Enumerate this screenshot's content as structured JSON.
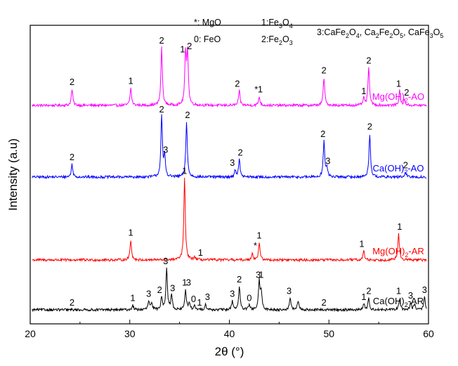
{
  "chart_data": {
    "type": "line",
    "xlabel": "2θ (°)",
    "ylabel": "Intensity (a.u)",
    "xlim": [
      20,
      60
    ],
    "xticks": [
      20,
      30,
      40,
      50,
      60
    ],
    "legend": {
      "position": "top",
      "entries": [
        {
          "symbol": "*",
          "name": "MgO",
          "text": "*: MgO"
        },
        {
          "symbol": "0",
          "name": "FeO",
          "text": "0: FeO"
        },
        {
          "symbol": "1",
          "name": "Fe3O4",
          "text": "1:Fe3O4"
        },
        {
          "symbol": "2",
          "name": "Fe2O3",
          "text": "2:Fe2O3"
        },
        {
          "symbol": "3",
          "name": "CaFe2O4, Ca2Fe2O5, CaFe3O5",
          "text": "3:CaFe2O4, Ca2Fe2O5, CaFe3O5"
        }
      ]
    },
    "series": [
      {
        "name": "Mg(OH)2-AO",
        "color": "#ff00ff",
        "baseline": 3.0,
        "peaks": [
          [
            24.2,
            0.28
          ],
          [
            30.1,
            0.3
          ],
          [
            33.2,
            1.0
          ],
          [
            35.6,
            0.85
          ],
          [
            35.8,
            0.9
          ],
          [
            41.0,
            0.25
          ],
          [
            43.0,
            0.15
          ],
          [
            49.5,
            0.48
          ],
          [
            53.5,
            0.12
          ],
          [
            54.0,
            0.65
          ],
          [
            57.1,
            0.25
          ],
          [
            57.6,
            0.1
          ]
        ],
        "annotations": [
          {
            "x": 24.2,
            "label": "2"
          },
          {
            "x": 30.1,
            "label": "1"
          },
          {
            "x": 33.2,
            "label": "2"
          },
          {
            "x": 35.3,
            "label": "1"
          },
          {
            "x": 36.0,
            "label": "2"
          },
          {
            "x": 40.8,
            "label": "2"
          },
          {
            "x": 42.7,
            "label": "*"
          },
          {
            "x": 43.1,
            "label": "1"
          },
          {
            "x": 49.5,
            "label": "2"
          },
          {
            "x": 53.5,
            "label": "1"
          },
          {
            "x": 54.0,
            "label": "2"
          },
          {
            "x": 57.0,
            "label": "1"
          },
          {
            "x": 57.8,
            "label": "2"
          }
        ]
      },
      {
        "name": "Ca(OH)2-AO",
        "color": "#0000ff",
        "baseline": 2.0,
        "peaks": [
          [
            24.2,
            0.22
          ],
          [
            33.2,
            1.05
          ],
          [
            33.5,
            0.35
          ],
          [
            35.7,
            0.95
          ],
          [
            40.6,
            0.12
          ],
          [
            41.0,
            0.3
          ],
          [
            49.5,
            0.62
          ],
          [
            49.8,
            0.15
          ],
          [
            54.1,
            0.75
          ],
          [
            57.7,
            0.08
          ]
        ],
        "annotations": [
          {
            "x": 24.2,
            "label": "2"
          },
          {
            "x": 33.2,
            "label": "2"
          },
          {
            "x": 33.6,
            "label": "3"
          },
          {
            "x": 35.8,
            "label": "2"
          },
          {
            "x": 40.3,
            "label": "3"
          },
          {
            "x": 41.1,
            "label": "2"
          },
          {
            "x": 49.4,
            "label": "2"
          },
          {
            "x": 49.9,
            "label": "3"
          },
          {
            "x": 54.1,
            "label": "2"
          },
          {
            "x": 57.7,
            "label": "2"
          }
        ]
      },
      {
        "name": "Mg(OH)2-AR",
        "color": "#ff0000",
        "baseline": 1.0,
        "peaks": [
          [
            30.1,
            0.35
          ],
          [
            35.5,
            1.42
          ],
          [
            36.5,
            0.05
          ],
          [
            42.3,
            0.12
          ],
          [
            43.0,
            0.3
          ],
          [
            53.5,
            0.15
          ],
          [
            57.0,
            0.45
          ]
        ],
        "annotations": [
          {
            "x": 30.1,
            "label": "1"
          },
          {
            "x": 35.5,
            "label": "1"
          },
          {
            "x": 37.1,
            "label": "1"
          },
          {
            "x": 42.6,
            "label": "*"
          },
          {
            "x": 43.0,
            "label": "1"
          },
          {
            "x": 53.3,
            "label": "1"
          },
          {
            "x": 57.1,
            "label": "1"
          }
        ]
      },
      {
        "name": "Ca(OH)2-AR",
        "color": "#000000",
        "baseline": 0.0,
        "peaks": [
          [
            30.3,
            0.08
          ],
          [
            31.9,
            0.15
          ],
          [
            32.2,
            0.1
          ],
          [
            33.2,
            0.22
          ],
          [
            33.7,
            0.72
          ],
          [
            34.2,
            0.25
          ],
          [
            35.6,
            0.35
          ],
          [
            36.0,
            0.12
          ],
          [
            36.5,
            0.06
          ],
          [
            37.6,
            0.1
          ],
          [
            40.3,
            0.15
          ],
          [
            41.0,
            0.4
          ],
          [
            42.0,
            0.08
          ],
          [
            43.0,
            0.48
          ],
          [
            43.2,
            0.3
          ],
          [
            46.1,
            0.2
          ],
          [
            46.9,
            0.15
          ],
          [
            53.5,
            0.1
          ],
          [
            54.0,
            0.2
          ],
          [
            57.1,
            0.2
          ],
          [
            58.2,
            0.12
          ],
          [
            58.6,
            0.1
          ],
          [
            59.6,
            0.22
          ]
        ],
        "annotations": [
          {
            "x": 24.2,
            "label": "2"
          },
          {
            "x": 30.3,
            "label": "1"
          },
          {
            "x": 31.9,
            "label": "3"
          },
          {
            "x": 33.0,
            "label": "2"
          },
          {
            "x": 33.6,
            "label": "3"
          },
          {
            "x": 34.3,
            "label": "3"
          },
          {
            "x": 35.5,
            "label": "1"
          },
          {
            "x": 35.9,
            "label": "3"
          },
          {
            "x": 36.4,
            "label": "0"
          },
          {
            "x": 37.0,
            "label": "1"
          },
          {
            "x": 37.8,
            "label": "3"
          },
          {
            "x": 40.3,
            "label": "3"
          },
          {
            "x": 41.0,
            "label": "2"
          },
          {
            "x": 42.0,
            "label": "0"
          },
          {
            "x": 42.9,
            "label": "3"
          },
          {
            "x": 43.2,
            "label": "1"
          },
          {
            "x": 46.0,
            "label": "3"
          },
          {
            "x": 49.5,
            "label": "2"
          },
          {
            "x": 53.5,
            "label": "1"
          },
          {
            "x": 54.0,
            "label": "2"
          },
          {
            "x": 57.0,
            "label": "1"
          },
          {
            "x": 58.2,
            "label": "3"
          },
          {
            "x": 59.6,
            "label": "3"
          }
        ]
      }
    ]
  }
}
